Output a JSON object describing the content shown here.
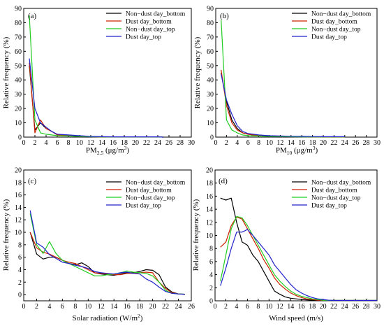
{
  "chart_data": [
    {
      "type": "line",
      "panel_label": "(a)",
      "xlabel": {
        "pre": "PM",
        "sub": "2.5",
        "post": " (μg/m",
        "sup": "3",
        "end": ")"
      },
      "ylabel": "Relative frequency (%)",
      "xlim": [
        0,
        30
      ],
      "ylim": [
        0,
        90
      ],
      "xticks": [
        0,
        2,
        4,
        6,
        8,
        10,
        12,
        14,
        16,
        18,
        20,
        22,
        24,
        26,
        28,
        30
      ],
      "yticks": [
        0,
        10,
        20,
        30,
        40,
        50,
        60,
        70,
        80,
        90
      ],
      "legend_position": "top-right",
      "series": [
        {
          "name": "Non−dust day_bottom",
          "color": "#000000",
          "x": [
            1,
            2,
            3,
            4,
            5,
            6,
            8,
            10,
            12,
            14,
            16,
            18,
            20,
            22,
            24,
            25
          ],
          "y": [
            50,
            5,
            10,
            6,
            4,
            1.5,
            1,
            0.5,
            0.3,
            0.2,
            0.2,
            0.2,
            0.2,
            0.2,
            0.2,
            0
          ]
        },
        {
          "name": "Dust day_bottom",
          "color": "#cc2200",
          "x": [
            1,
            2,
            3,
            4,
            5,
            6,
            8,
            10,
            12,
            14,
            16,
            18,
            20,
            22,
            24,
            25
          ],
          "y": [
            52,
            3,
            12,
            6,
            4,
            1.5,
            1,
            0.5,
            0.3,
            0.2,
            0.2,
            0.2,
            0.2,
            0.2,
            0.2,
            0
          ]
        },
        {
          "name": "Non−dust day_top",
          "color": "#22cc22",
          "x": [
            1,
            2,
            3,
            4,
            5,
            6,
            8,
            10,
            12,
            14,
            16,
            18,
            20,
            22,
            24,
            25
          ],
          "y": [
            85,
            12,
            3,
            2,
            1.5,
            1,
            0.8,
            0.5,
            0.3,
            0.2,
            0.2,
            0.2,
            0.2,
            0.2,
            0.2,
            0
          ]
        },
        {
          "name": "Dust day_top",
          "color": "#2222cc",
          "x": [
            1,
            2,
            3,
            4,
            5,
            6,
            8,
            10,
            12,
            14,
            16,
            18,
            20,
            22,
            24,
            25
          ],
          "y": [
            55,
            20,
            10,
            7,
            4,
            2,
            1.5,
            1,
            0.5,
            0.3,
            0.2,
            0.2,
            0.2,
            0.2,
            0.2,
            0
          ]
        }
      ]
    },
    {
      "type": "line",
      "panel_label": "(b)",
      "xlabel": {
        "pre": "PM",
        "sub": "10",
        "post": " (μg/m",
        "sup": "3",
        "end": ")"
      },
      "ylabel": "Relative frequency (%)",
      "xlim": [
        0,
        30
      ],
      "ylim": [
        0,
        90
      ],
      "xticks": [
        0,
        2,
        4,
        6,
        8,
        10,
        12,
        14,
        16,
        18,
        20,
        22,
        24,
        26,
        28,
        30
      ],
      "yticks": [
        0,
        10,
        20,
        30,
        40,
        50,
        60,
        70,
        80,
        90
      ],
      "legend_position": "top-right",
      "series": [
        {
          "name": "Non−dust day_bottom",
          "color": "#000000",
          "x": [
            1,
            2,
            3,
            4,
            5,
            6,
            8,
            10,
            12,
            14,
            16,
            18,
            20,
            22,
            24
          ],
          "y": [
            45,
            25,
            12,
            6,
            3,
            2,
            1,
            0.8,
            0.5,
            0.4,
            0.3,
            0.2,
            0.2,
            0.2,
            0.2
          ]
        },
        {
          "name": "Dust day_bottom",
          "color": "#cc2200",
          "x": [
            1,
            2,
            3,
            4,
            5,
            6,
            8,
            10,
            12,
            14,
            16,
            18,
            20,
            22,
            24
          ],
          "y": [
            47,
            22,
            10,
            5,
            3,
            2,
            1,
            0.8,
            0.5,
            0.4,
            0.3,
            0.2,
            0.2,
            0.2,
            0.2
          ]
        },
        {
          "name": "Non−dust day_top",
          "color": "#22cc22",
          "x": [
            1,
            2,
            3,
            4,
            5,
            6,
            8,
            10,
            12,
            14,
            16,
            18,
            20,
            22,
            24
          ],
          "y": [
            82,
            12,
            5,
            3,
            1.5,
            1,
            0.8,
            0.5,
            0.4,
            0.3,
            0.2,
            0.2,
            0.2,
            0.2,
            0.2
          ]
        },
        {
          "name": "Dust day_top",
          "color": "#2222cc",
          "x": [
            1,
            2,
            3,
            4,
            5,
            6,
            8,
            10,
            12,
            14,
            16,
            18,
            20,
            22,
            24
          ],
          "y": [
            44,
            26,
            16,
            8,
            4,
            2.5,
            1.5,
            1,
            0.8,
            0.6,
            0.5,
            0.4,
            0.3,
            0.3,
            0.3
          ]
        }
      ]
    },
    {
      "type": "line",
      "panel_label": "(c)",
      "xlabel": {
        "pre": "Solar radiation (W/m",
        "sup": "2",
        "end": ")"
      },
      "ylabel": "Relative frequency (%)",
      "xlim": [
        0,
        26
      ],
      "ylim": [
        -1,
        20
      ],
      "xticks": [
        0,
        2,
        4,
        6,
        8,
        10,
        12,
        14,
        16,
        18,
        20,
        22,
        24,
        26
      ],
      "yticks": [
        0,
        2,
        4,
        6,
        8,
        10,
        12,
        14,
        16,
        18,
        20
      ],
      "legend_position": "top-right",
      "series": [
        {
          "name": "Non−dust day_bottom",
          "color": "#000000",
          "x": [
            1,
            2,
            3,
            4,
            5,
            6,
            7,
            8,
            9,
            10,
            11,
            12,
            13,
            14,
            15,
            16,
            17,
            18,
            19,
            20,
            21,
            22,
            23,
            24,
            25
          ],
          "y": [
            10,
            6.5,
            5.7,
            6,
            6,
            5.5,
            5,
            4.8,
            5.1,
            4.5,
            3.5,
            3.3,
            3.2,
            3.1,
            3.3,
            3.5,
            3.5,
            3.7,
            4,
            3.9,
            3.2,
            1.2,
            0.4,
            0.1,
            0.05
          ]
        },
        {
          "name": "Dust day_bottom",
          "color": "#cc2200",
          "x": [
            1,
            2,
            3,
            4,
            5,
            6,
            7,
            8,
            9,
            10,
            11,
            12,
            13,
            14,
            15,
            16,
            17,
            18,
            19,
            20,
            21,
            22,
            23,
            24,
            25
          ],
          "y": [
            10,
            7.5,
            6.8,
            6.5,
            6,
            5.5,
            5.2,
            5,
            4.5,
            4,
            3.5,
            3.4,
            3.3,
            3.2,
            3.2,
            3.4,
            3.4,
            3.5,
            3.6,
            3.5,
            2,
            1,
            0.3,
            0.1,
            0.05
          ]
        },
        {
          "name": "Non−dust day_top",
          "color": "#22cc22",
          "x": [
            1,
            2,
            3,
            4,
            5,
            6,
            7,
            8,
            9,
            10,
            11,
            12,
            13,
            14,
            15,
            16,
            17,
            18,
            19,
            20,
            21,
            22,
            23,
            24,
            25
          ],
          "y": [
            13,
            8,
            6.6,
            8.5,
            6.6,
            5.5,
            5,
            4.5,
            4,
            3.5,
            3,
            3,
            3.2,
            3.3,
            3.5,
            3.8,
            3.6,
            3.5,
            3.4,
            3,
            2,
            0.7,
            0.2,
            0.1,
            0.05
          ]
        },
        {
          "name": "Dust day_top",
          "color": "#2222cc",
          "x": [
            1,
            2,
            3,
            4,
            5,
            6,
            7,
            8,
            9,
            10,
            11,
            12,
            13,
            14,
            15,
            16,
            17,
            18,
            19,
            20,
            21,
            22,
            23,
            24,
            25
          ],
          "y": [
            13.5,
            8.3,
            7.6,
            6.4,
            5.8,
            5.2,
            5,
            4.7,
            4.5,
            4.2,
            3.7,
            3.5,
            3.4,
            3.3,
            3.5,
            3.6,
            3.4,
            3.3,
            2.5,
            2,
            1.2,
            0.5,
            0.2,
            0.1,
            0.05
          ]
        }
      ]
    },
    {
      "type": "line",
      "panel_label": "(d)",
      "xlabel": {
        "pre": "Wind speed (m/s)"
      },
      "ylabel": "Relative frequency (%)",
      "xlim": [
        0,
        30
      ],
      "ylim": [
        0,
        20
      ],
      "xticks": [
        0,
        2,
        4,
        6,
        8,
        10,
        12,
        14,
        16,
        18,
        20,
        22,
        24,
        26,
        28,
        30
      ],
      "yticks": [
        0,
        2,
        4,
        6,
        8,
        10,
        12,
        14,
        16,
        18,
        20
      ],
      "legend_position": "top-right",
      "series": [
        {
          "name": "Non−dust day_bottom",
          "color": "#000000",
          "x": [
            1,
            2,
            3,
            4,
            5,
            6,
            7,
            8,
            9,
            10,
            11,
            12,
            13,
            14,
            15,
            16,
            17,
            18,
            19,
            20,
            21,
            22,
            23,
            24,
            25,
            26,
            27,
            28,
            29,
            30
          ],
          "y": [
            15.7,
            15.4,
            15.7,
            12,
            9,
            8.5,
            7,
            6,
            4.5,
            3,
            1.5,
            1,
            0.6,
            0.4,
            0.3,
            0.2,
            0.15,
            0.1,
            0.05,
            0.05,
            0.05,
            0.05,
            0.05,
            0.05,
            0.05,
            0.05,
            0.05,
            0.05,
            0.05,
            0.05
          ]
        },
        {
          "name": "Dust day_bottom",
          "color": "#cc2200",
          "x": [
            1,
            2,
            3,
            4,
            5,
            6,
            7,
            8,
            9,
            10,
            11,
            12,
            13,
            14,
            15,
            16,
            17,
            18,
            19,
            20,
            21,
            22,
            23,
            24,
            25,
            26,
            27,
            28,
            29,
            30
          ],
          "y": [
            8.2,
            9,
            11.5,
            12.8,
            12.5,
            11,
            9.5,
            8,
            6.3,
            5,
            3.5,
            2.5,
            1.8,
            1.2,
            0.8,
            0.5,
            0.3,
            0.2,
            0.1,
            0.08,
            0.05,
            0.05,
            0.05,
            0.05,
            0.05,
            0.05,
            0.05,
            0.05,
            0.05,
            0.05
          ]
        },
        {
          "name": "Non−dust day_top",
          "color": "#22cc22",
          "x": [
            1,
            2,
            3,
            4,
            5,
            6,
            7,
            8,
            9,
            10,
            11,
            12,
            13,
            14,
            15,
            16,
            17,
            18,
            19,
            20,
            21,
            22,
            23,
            24,
            25,
            26,
            27,
            28,
            29,
            30
          ],
          "y": [
            3,
            7,
            11,
            12.9,
            12.7,
            11.5,
            10,
            8.5,
            7,
            5.5,
            4,
            3,
            2.2,
            1.5,
            1,
            0.7,
            0.5,
            0.3,
            0.2,
            0.1,
            0.05,
            0.05,
            0.05,
            0.05,
            0.05,
            0.05,
            0.05,
            0.05,
            0.05,
            0.05
          ]
        },
        {
          "name": "Dust day_top",
          "color": "#2222cc",
          "x": [
            1,
            2,
            3,
            4,
            5,
            6,
            7,
            8,
            9,
            10,
            11,
            12,
            13,
            14,
            15,
            16,
            17,
            18,
            19,
            20,
            21,
            22,
            23,
            24,
            25,
            26,
            27,
            28,
            29,
            30
          ],
          "y": [
            2.3,
            5,
            8,
            10.5,
            10.5,
            10.9,
            10,
            9,
            8,
            7,
            5.5,
            4.5,
            3.5,
            2.5,
            1.7,
            1.2,
            0.8,
            0.5,
            0.3,
            0.2,
            0.1,
            0.05,
            0.05,
            0.05,
            0.05,
            0.05,
            0.05,
            0.05,
            0.05,
            0.05
          ]
        }
      ]
    }
  ]
}
